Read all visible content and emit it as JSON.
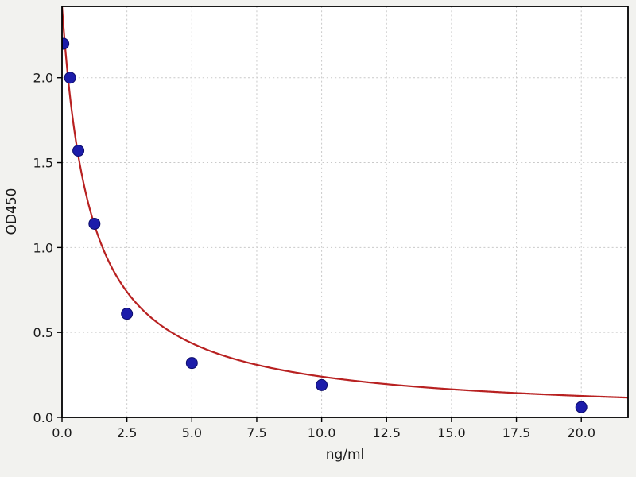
{
  "chart_data": {
    "type": "scatter",
    "title": "",
    "xlabel": "ng/ml",
    "ylabel": "OD450",
    "xlim": [
      0,
      21.8
    ],
    "ylim": [
      0,
      2.42
    ],
    "xticks": [
      0.0,
      2.5,
      5.0,
      7.5,
      10.0,
      12.5,
      15.0,
      17.5,
      20.0
    ],
    "xtick_labels": [
      "0.0",
      "2.5",
      "5.0",
      "7.5",
      "10.0",
      "12.5",
      "15.0",
      "17.5",
      "20.0"
    ],
    "yticks": [
      0.0,
      0.5,
      1.0,
      1.5,
      2.0
    ],
    "ytick_labels": [
      "0.0",
      "0.5",
      "1.0",
      "1.5",
      "2.0"
    ],
    "grid": true,
    "legend": null,
    "points": {
      "x": [
        0.05,
        0.31,
        0.63,
        1.25,
        2.5,
        5.0,
        10.0,
        20.0
      ],
      "y": [
        2.2,
        2.0,
        1.57,
        1.14,
        0.61,
        0.32,
        0.19,
        0.06
      ]
    },
    "fit_curve": {
      "model": "4pl",
      "a": 2.42,
      "b": 1.0,
      "c": 1.1,
      "d": 0.0
    },
    "colors": {
      "figure_bg": "#f2f2ef",
      "plot_bg": "#ffffff",
      "grid": "#c9c9c9",
      "axis": "#000000",
      "tick_text": "#1a1a1a",
      "point_fill": "#1c1caa",
      "point_edge": "#0d0d6b",
      "curve": "#b82121"
    }
  }
}
